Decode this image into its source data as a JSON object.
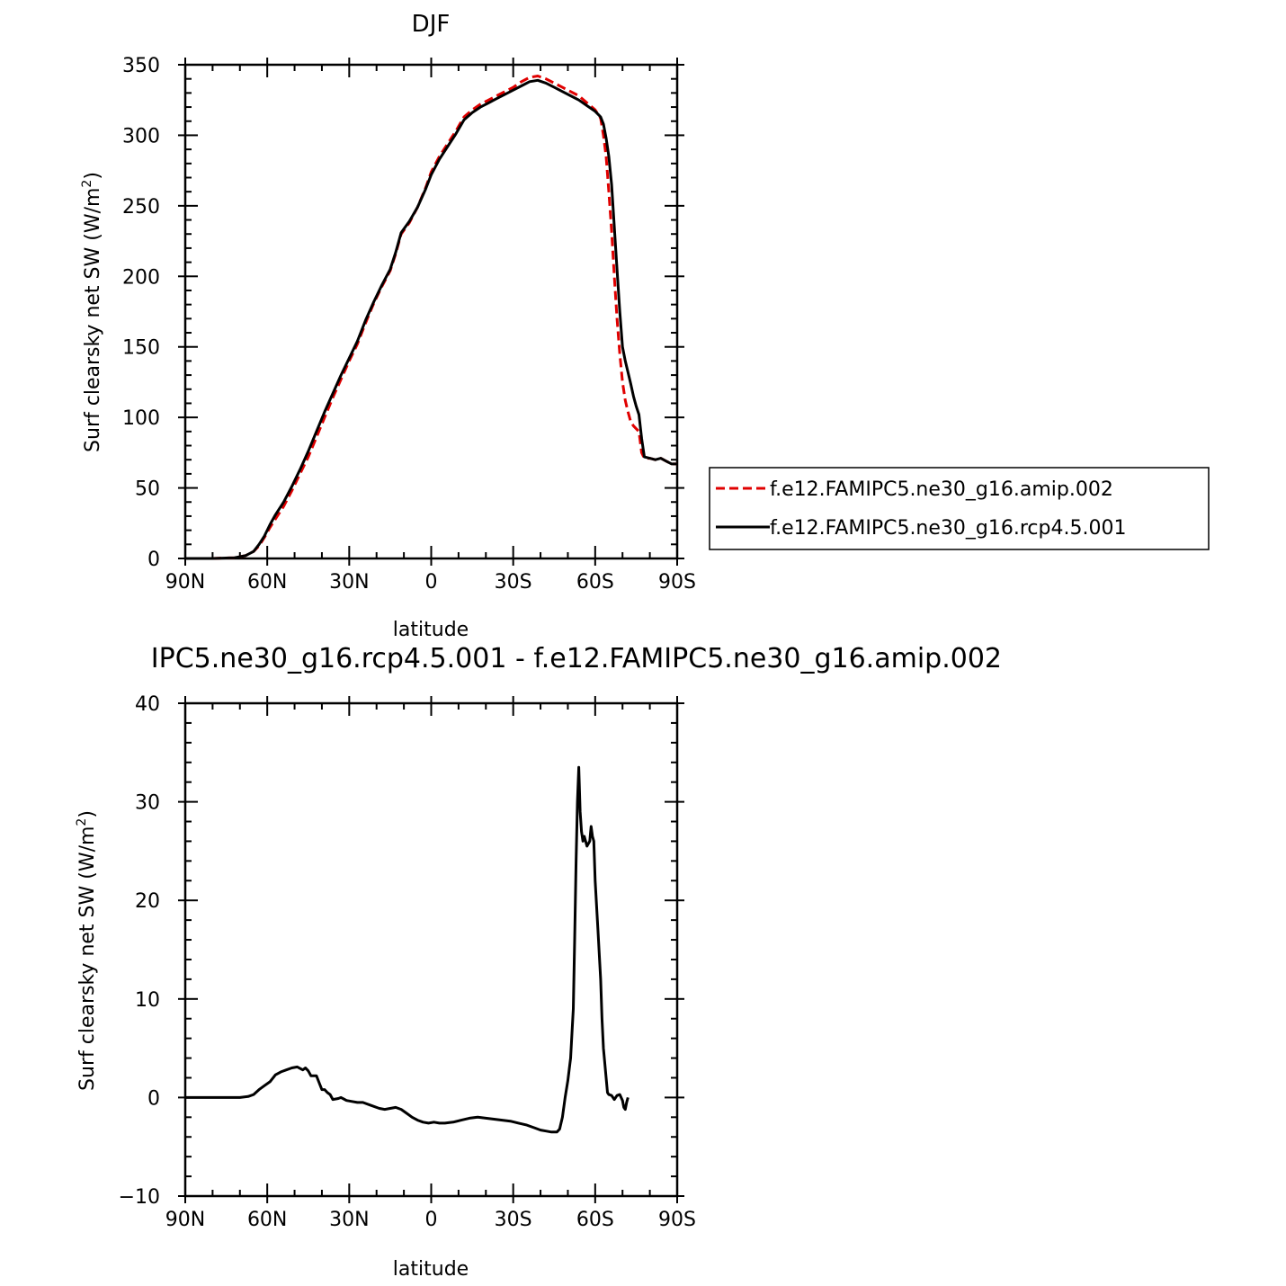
{
  "chart_data": [
    {
      "type": "line",
      "title": "DJF",
      "xlabel": "latitude",
      "ylabel": "Surf clearsky net SW (W/m²)",
      "ylabel_parts": [
        "Surf clearsky net SW (W/m",
        "2",
        ")"
      ],
      "xlim": [
        -90,
        90
      ],
      "ylim": [
        0,
        350
      ],
      "x_ticks": [
        {
          "value": -90,
          "label": "90N"
        },
        {
          "value": -60,
          "label": "60N"
        },
        {
          "value": -30,
          "label": "30N"
        },
        {
          "value": 0,
          "label": "0"
        },
        {
          "value": 30,
          "label": "30S"
        },
        {
          "value": 60,
          "label": "60S"
        },
        {
          "value": 90,
          "label": "90S"
        }
      ],
      "y_ticks": [
        {
          "value": 0,
          "label": "0"
        },
        {
          "value": 50,
          "label": "50"
        },
        {
          "value": 100,
          "label": "100"
        },
        {
          "value": 150,
          "label": "150"
        },
        {
          "value": 200,
          "label": "200"
        },
        {
          "value": 250,
          "label": "250"
        },
        {
          "value": 300,
          "label": "300"
        },
        {
          "value": 350,
          "label": "350"
        }
      ],
      "legend_position": "right",
      "series": [
        {
          "name": "f.e12.FAMIPC5.ne30_g16.amip.002",
          "color": "#e00000",
          "dash": "dashed",
          "points": [
            [
              -90,
              0
            ],
            [
              -80,
              0
            ],
            [
              -72,
              0.5
            ],
            [
              -68,
              2
            ],
            [
              -65,
              5
            ],
            [
              -63,
              9
            ],
            [
              -61,
              15
            ],
            [
              -59,
              22
            ],
            [
              -57,
              28
            ],
            [
              -54,
              37
            ],
            [
              -51,
              48
            ],
            [
              -48,
              60
            ],
            [
              -45,
              72
            ],
            [
              -42,
              86
            ],
            [
              -39,
              100
            ],
            [
              -36,
              114
            ],
            [
              -33,
              127
            ],
            [
              -30,
              140
            ],
            [
              -27,
              152
            ],
            [
              -24,
              167
            ],
            [
              -21,
              181
            ],
            [
              -18,
              193
            ],
            [
              -15,
              204
            ],
            [
              -13,
              216
            ],
            [
              -11,
              230
            ],
            [
              -8,
              238
            ],
            [
              -5,
              249
            ],
            [
              -2,
              263
            ],
            [
              0,
              274
            ],
            [
              3,
              285
            ],
            [
              6,
              294
            ],
            [
              9,
              303
            ],
            [
              12,
              313
            ],
            [
              15,
              318
            ],
            [
              18,
              322
            ],
            [
              21,
              325
            ],
            [
              24,
              328
            ],
            [
              27,
              331
            ],
            [
              30,
              334
            ],
            [
              33,
              338
            ],
            [
              36,
              341
            ],
            [
              39,
              342
            ],
            [
              42,
              340
            ],
            [
              45,
              337
            ],
            [
              48,
              334
            ],
            [
              51,
              331
            ],
            [
              54,
              328
            ],
            [
              57,
              323
            ],
            [
              60,
              318
            ],
            [
              62,
              312
            ],
            [
              63,
              300
            ],
            [
              64,
              285
            ],
            [
              65,
              260
            ],
            [
              66,
              232
            ],
            [
              67,
              200
            ],
            [
              68,
              170
            ],
            [
              69,
              145
            ],
            [
              70,
              125
            ],
            [
              71,
              112
            ],
            [
              72,
              104
            ],
            [
              73,
              97
            ],
            [
              74,
              94
            ],
            [
              75,
              92
            ],
            [
              76,
              90
            ],
            [
              77,
              75
            ],
            [
              78,
              71
            ],
            [
              80,
              71
            ],
            [
              82,
              70
            ],
            [
              84,
              71
            ],
            [
              86,
              69
            ],
            [
              88,
              67
            ],
            [
              90,
              67
            ]
          ]
        },
        {
          "name": "f.e12.FAMIPC5.ne30_g16.rcp4.5.001",
          "color": "#000000",
          "dash": "solid",
          "points": [
            [
              -90,
              0
            ],
            [
              -80,
              0
            ],
            [
              -72,
              0.5
            ],
            [
              -68,
              2
            ],
            [
              -65,
              5
            ],
            [
              -63,
              10
            ],
            [
              -61,
              16
            ],
            [
              -59,
              24
            ],
            [
              -57,
              31
            ],
            [
              -54,
              40
            ],
            [
              -51,
              51
            ],
            [
              -48,
              63
            ],
            [
              -45,
              76
            ],
            [
              -42,
              90
            ],
            [
              -39,
              104
            ],
            [
              -36,
              117
            ],
            [
              -33,
              130
            ],
            [
              -30,
              142
            ],
            [
              -27,
              154
            ],
            [
              -24,
              169
            ],
            [
              -21,
              182
            ],
            [
              -18,
              194
            ],
            [
              -15,
              205
            ],
            [
              -13,
              217
            ],
            [
              -11,
              231
            ],
            [
              -8,
              239
            ],
            [
              -5,
              249
            ],
            [
              -2,
              262
            ],
            [
              0,
              272
            ],
            [
              3,
              283
            ],
            [
              6,
              292
            ],
            [
              9,
              301
            ],
            [
              12,
              311
            ],
            [
              15,
              316
            ],
            [
              18,
              320
            ],
            [
              21,
              323
            ],
            [
              24,
              326
            ],
            [
              27,
              329
            ],
            [
              30,
              332
            ],
            [
              33,
              335
            ],
            [
              36,
              338
            ],
            [
              39,
              339
            ],
            [
              42,
              337
            ],
            [
              45,
              334
            ],
            [
              48,
              331
            ],
            [
              51,
              328
            ],
            [
              54,
              325
            ],
            [
              57,
              321
            ],
            [
              60,
              317
            ],
            [
              62,
              313
            ],
            [
              63,
              308
            ],
            [
              64,
              298
            ],
            [
              65,
              285
            ],
            [
              66,
              265
            ],
            [
              67,
              235
            ],
            [
              68,
              205
            ],
            [
              69,
              175
            ],
            [
              70,
              150
            ],
            [
              71,
              140
            ],
            [
              72,
              132
            ],
            [
              73,
              124
            ],
            [
              74,
              115
            ],
            [
              75,
              108
            ],
            [
              76,
              102
            ],
            [
              77,
              85
            ],
            [
              78,
              72
            ],
            [
              80,
              71
            ],
            [
              82,
              70
            ],
            [
              84,
              71
            ],
            [
              86,
              69
            ],
            [
              88,
              67
            ],
            [
              90,
              67
            ]
          ]
        }
      ]
    },
    {
      "type": "line",
      "title": "IPC5.ne30_g16.rcp4.5.001 - f.e12.FAMIPC5.ne30_g16.amip.002",
      "xlabel": "latitude",
      "ylabel": "Surf clearsky net SW (W/m²)",
      "ylabel_parts": [
        "Surf clearsky net SW (W/m",
        "2",
        ")"
      ],
      "xlim": [
        -90,
        90
      ],
      "ylim": [
        -10,
        40
      ],
      "x_ticks": [
        {
          "value": -90,
          "label": "90N"
        },
        {
          "value": -60,
          "label": "60N"
        },
        {
          "value": -30,
          "label": "30N"
        },
        {
          "value": 0,
          "label": "0"
        },
        {
          "value": 30,
          "label": "30S"
        },
        {
          "value": 60,
          "label": "60S"
        },
        {
          "value": 90,
          "label": "90S"
        }
      ],
      "y_ticks": [
        {
          "value": -10,
          "label": "−10"
        },
        {
          "value": 0,
          "label": "0"
        },
        {
          "value": 10,
          "label": "10"
        },
        {
          "value": 20,
          "label": "20"
        },
        {
          "value": 30,
          "label": "30"
        },
        {
          "value": 40,
          "label": "40"
        }
      ],
      "series": [
        {
          "color": "#000000",
          "dash": "solid",
          "points": [
            [
              -90,
              0
            ],
            [
              -80,
              0
            ],
            [
              -70,
              0
            ],
            [
              -67,
              0.1
            ],
            [
              -65,
              0.3
            ],
            [
              -63,
              0.8
            ],
            [
              -61,
              1.2
            ],
            [
              -59,
              1.6
            ],
            [
              -57,
              2.3
            ],
            [
              -55,
              2.6
            ],
            [
              -53,
              2.8
            ],
            [
              -51,
              3.0
            ],
            [
              -49,
              3.1
            ],
            [
              -47,
              2.8
            ],
            [
              -46,
              3.0
            ],
            [
              -45,
              2.7
            ],
            [
              -44,
              2.2
            ],
            [
              -42,
              2.2
            ],
            [
              -41,
              1.5
            ],
            [
              -40,
              0.8
            ],
            [
              -39,
              0.8
            ],
            [
              -38,
              0.5
            ],
            [
              -37,
              0.3
            ],
            [
              -36,
              -0.2
            ],
            [
              -34,
              -0.1
            ],
            [
              -33,
              0
            ],
            [
              -31,
              -0.3
            ],
            [
              -29,
              -0.4
            ],
            [
              -27,
              -0.5
            ],
            [
              -25,
              -0.5
            ],
            [
              -22,
              -0.8
            ],
            [
              -19,
              -1.1
            ],
            [
              -17,
              -1.2
            ],
            [
              -15,
              -1.1
            ],
            [
              -13,
              -1.0
            ],
            [
              -11,
              -1.2
            ],
            [
              -9,
              -1.6
            ],
            [
              -7,
              -2.0
            ],
            [
              -5,
              -2.3
            ],
            [
              -3,
              -2.5
            ],
            [
              -1,
              -2.6
            ],
            [
              1,
              -2.5
            ],
            [
              3,
              -2.6
            ],
            [
              5,
              -2.6
            ],
            [
              8,
              -2.5
            ],
            [
              11,
              -2.3
            ],
            [
              14,
              -2.1
            ],
            [
              17,
              -2.0
            ],
            [
              20,
              -2.1
            ],
            [
              23,
              -2.2
            ],
            [
              26,
              -2.3
            ],
            [
              29,
              -2.4
            ],
            [
              32,
              -2.6
            ],
            [
              35,
              -2.8
            ],
            [
              38,
              -3.1
            ],
            [
              40,
              -3.3
            ],
            [
              42,
              -3.4
            ],
            [
              44,
              -3.5
            ],
            [
              46,
              -3.5
            ],
            [
              47,
              -3.2
            ],
            [
              48,
              -2.0
            ],
            [
              49,
              0
            ],
            [
              50,
              1.7
            ],
            [
              51,
              4.0
            ],
            [
              52,
              9.0
            ],
            [
              52.5,
              16
            ],
            [
              53,
              24
            ],
            [
              53.5,
              30
            ],
            [
              54,
              33.5
            ],
            [
              54.5,
              29
            ],
            [
              55,
              27
            ],
            [
              55.5,
              26
            ],
            [
              56,
              26.5
            ],
            [
              57,
              25.5
            ],
            [
              58,
              26
            ],
            [
              58.5,
              27.5
            ],
            [
              59,
              26.5
            ],
            [
              59.5,
              26
            ],
            [
              60,
              22
            ],
            [
              61,
              17
            ],
            [
              62,
              12
            ],
            [
              62.5,
              8
            ],
            [
              63,
              5
            ],
            [
              64,
              2
            ],
            [
              64.5,
              0.5
            ],
            [
              65,
              0.3
            ],
            [
              66,
              0.2
            ],
            [
              67,
              -0.2
            ],
            [
              68,
              0.2
            ],
            [
              69,
              0.3
            ],
            [
              70,
              -0.3
            ],
            [
              70.5,
              -1.0
            ],
            [
              71,
              -1.2
            ],
            [
              71.5,
              -0.5
            ],
            [
              72,
              0
            ]
          ]
        }
      ]
    }
  ]
}
